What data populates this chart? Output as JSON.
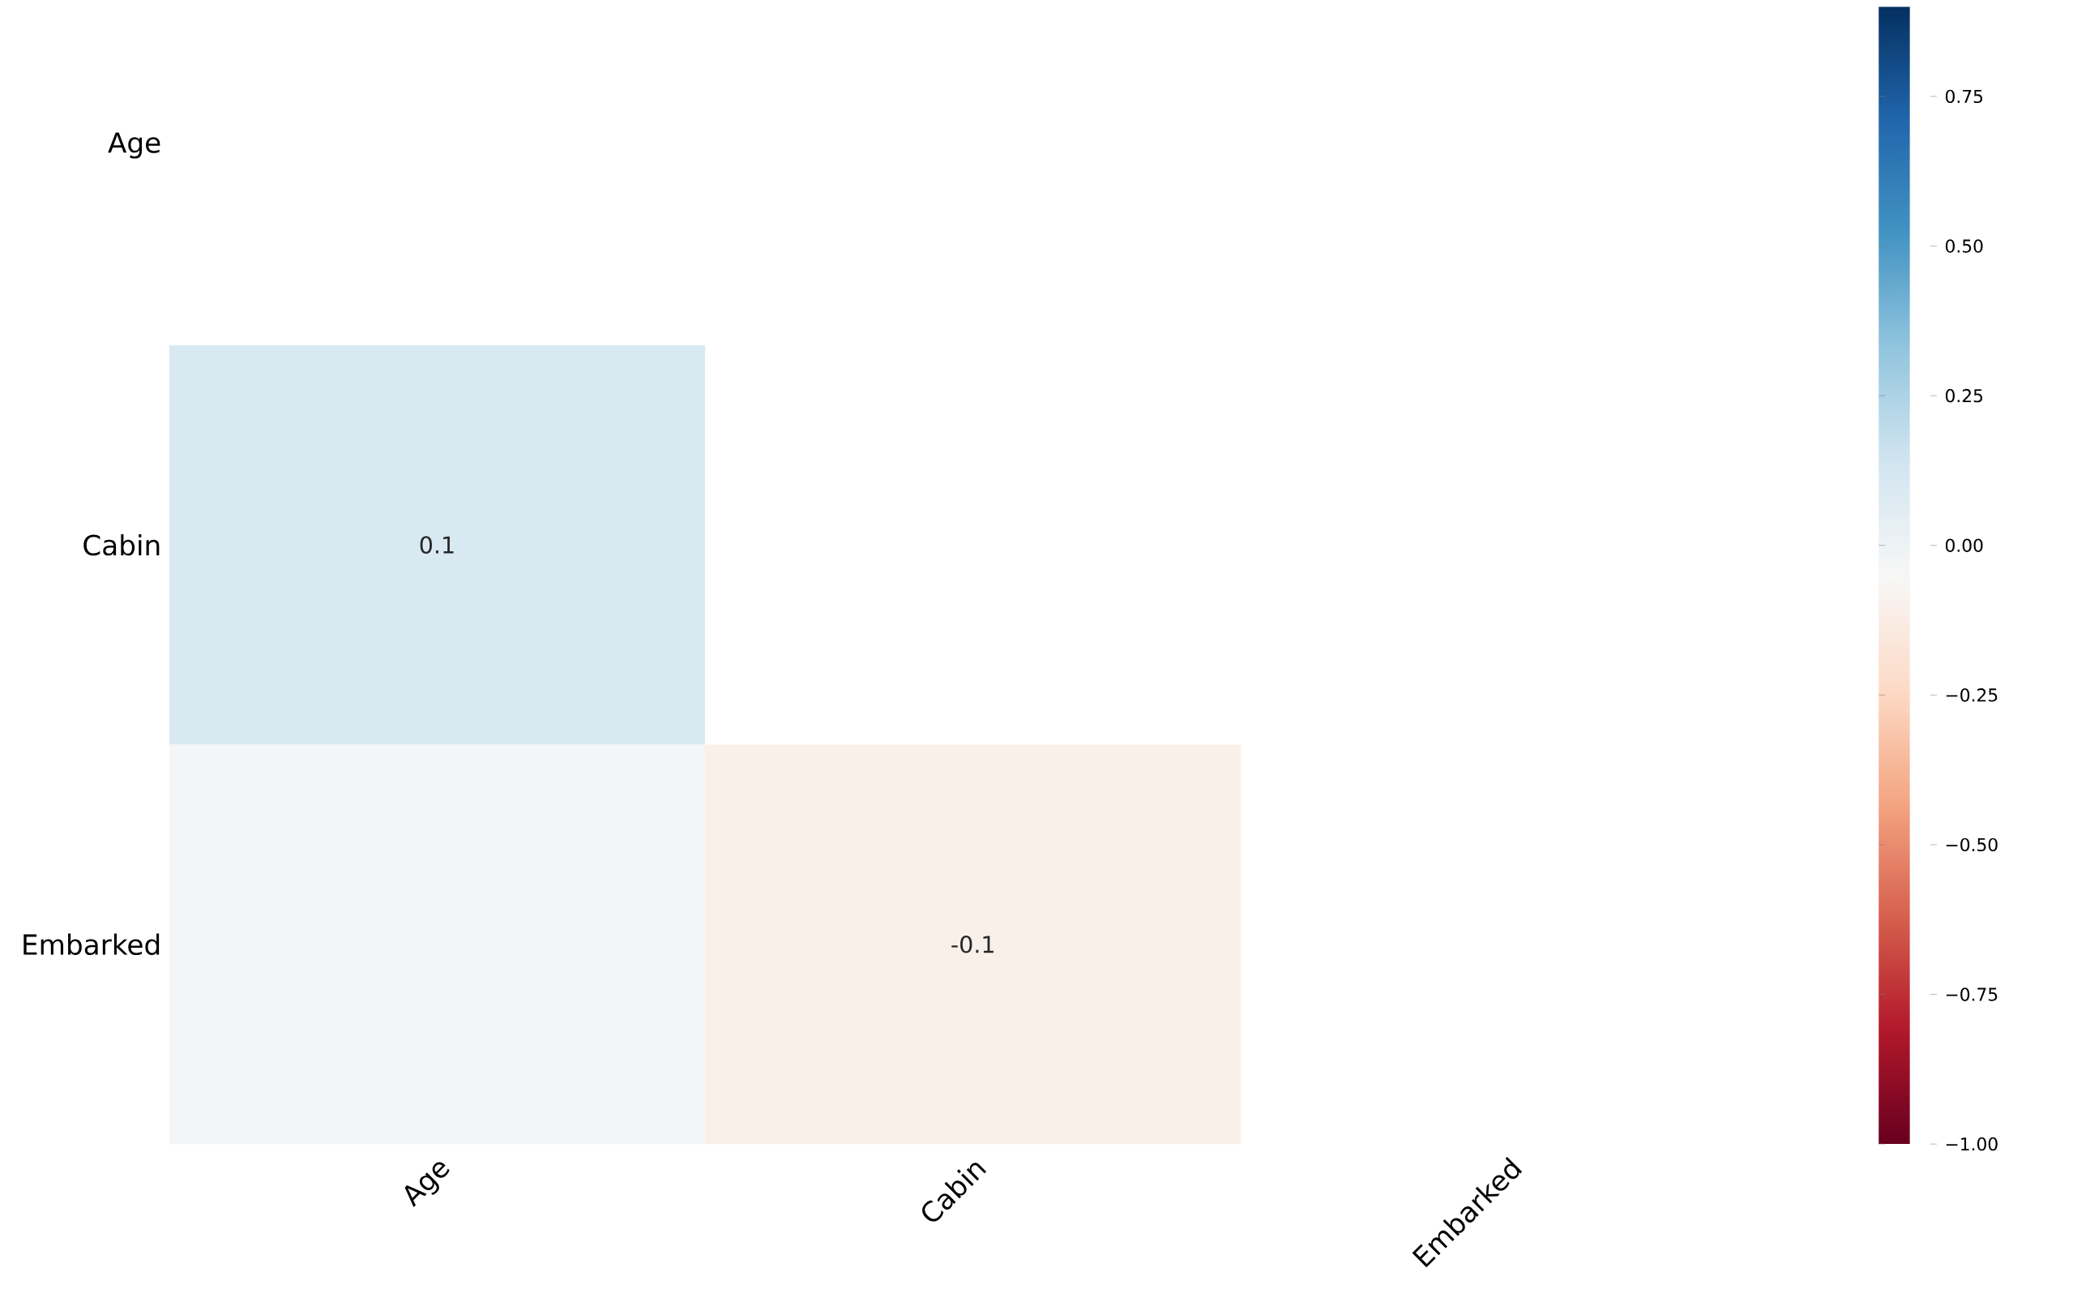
{
  "chart_data": {
    "type": "heatmap",
    "categories": [
      "Age",
      "Cabin",
      "Embarked"
    ],
    "y_categories": [
      "Age",
      "Cabin",
      "Embarked"
    ],
    "cells": [
      [
        null,
        null,
        null
      ],
      [
        0.1,
        null,
        null
      ],
      [
        -0.03,
        -0.1,
        null
      ]
    ],
    "cell_labels": [
      [
        null,
        null,
        null
      ],
      [
        "0.1",
        null,
        null
      ],
      [
        null,
        "-0.1",
        null
      ]
    ],
    "clim": [
      -1,
      0.9
    ],
    "cticks": [
      {
        "value": -1,
        "label": "−1.00"
      },
      {
        "value": -0.75,
        "label": "−0.75"
      },
      {
        "value": -0.5,
        "label": "−0.50"
      },
      {
        "value": -0.25,
        "label": "−0.25"
      },
      {
        "value": 0,
        "label": "0.00"
      },
      {
        "value": 0.25,
        "label": "0.25"
      },
      {
        "value": 0.5,
        "label": "0.50"
      },
      {
        "value": 0.75,
        "label": "0.75"
      }
    ]
  }
}
